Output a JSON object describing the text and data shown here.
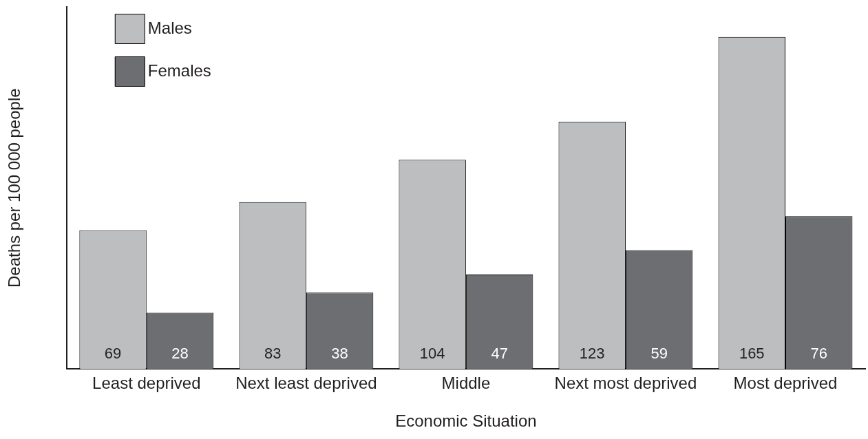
{
  "chart_data": {
    "type": "bar",
    "xlabel": "Economic Situation",
    "ylabel": "Deaths per 100 000 people",
    "categories": [
      "Least deprived",
      "Next least deprived",
      "Middle",
      "Next most deprived",
      "Most deprived"
    ],
    "series": [
      {
        "name": "Males",
        "color": "#bcbec0",
        "values": [
          69,
          83,
          104,
          123,
          165
        ]
      },
      {
        "name": "Females",
        "color": "#6d6e71",
        "values": [
          28,
          38,
          47,
          59,
          76
        ]
      }
    ],
    "data_labels": true,
    "legend": "top left",
    "grid": false,
    "tick_labels": "x"
  }
}
